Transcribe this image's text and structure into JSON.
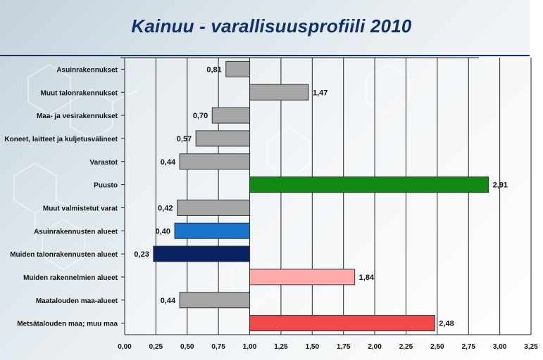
{
  "chart_data": {
    "type": "bar",
    "orientation": "horizontal",
    "title": "Kainuu - varallisuusprofiili 2010",
    "xlabel": "",
    "ylabel": "",
    "xlim": [
      0,
      3.25
    ],
    "baseline": 1.0,
    "grid": true,
    "x_ticks": [
      "0,00",
      "0,25",
      "0,50",
      "0,75",
      "1,00",
      "1,25",
      "1,50",
      "1,75",
      "2,00",
      "2,25",
      "2,50",
      "2,75",
      "3,00",
      "3,25"
    ],
    "categories": [
      "Asuinrakennukset",
      "Muut talonrakennukset",
      "Maa- ja vesirakennukset",
      "Koneet, laitteet ja kuljetusvälineet",
      "Varastot",
      "Puusto",
      "Muut valmistetut varat",
      "Asuinrakennusten alueet",
      "Muiden talonrakennusten alueet",
      "Muiden rakennelmien alueet",
      "Maatalouden maa-alueet",
      "Metsätalouden maa; muu maa"
    ],
    "values": [
      0.81,
      1.47,
      0.7,
      0.57,
      0.44,
      2.91,
      0.42,
      0.4,
      0.23,
      1.84,
      0.44,
      2.48
    ],
    "value_labels": [
      "0,81",
      "1,47",
      "0,70",
      "0,57",
      "0,44",
      "2,91",
      "0,42",
      "0,40",
      "0,23",
      "1,84",
      "0,44",
      "2,48"
    ],
    "colors": [
      "#a6a6a6",
      "#a6a6a6",
      "#a6a6a6",
      "#a6a6a6",
      "#a6a6a6",
      "#128812",
      "#a6a6a6",
      "#1874cd",
      "#0b2160",
      "#ffaaaa",
      "#a6a6a6",
      "#f04a4a"
    ]
  }
}
